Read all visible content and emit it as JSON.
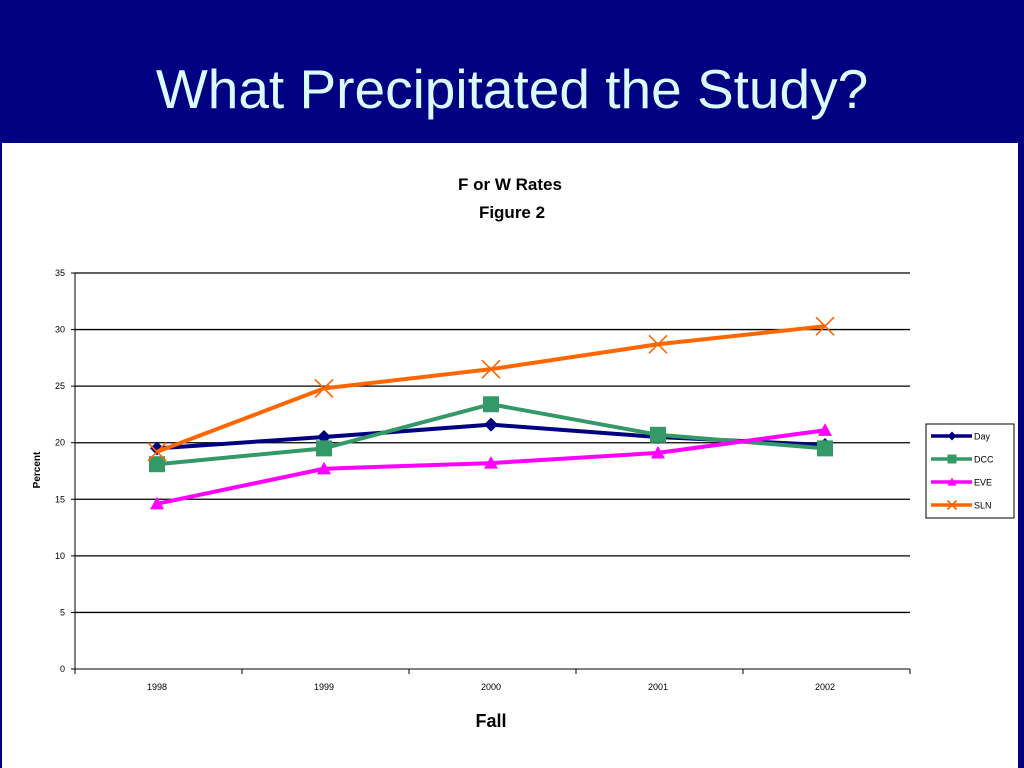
{
  "slide": {
    "title": "What Precipitated the Study?"
  },
  "chart_data": {
    "type": "line",
    "title": "F or W Rates",
    "subtitle": "Figure 2",
    "xlabel": "Fall",
    "ylabel": "Percent",
    "categories": [
      "1998",
      "1999",
      "2000",
      "2001",
      "2002"
    ],
    "ylim": [
      0,
      35
    ],
    "yticks": [
      0,
      5,
      10,
      15,
      20,
      25,
      30,
      35
    ],
    "grid": true,
    "legend_position": "right",
    "series": [
      {
        "name": "Day",
        "values": [
          19.5,
          20.5,
          21.6,
          20.5,
          19.8
        ],
        "color": "#000080",
        "marker": "diamond"
      },
      {
        "name": "DCC",
        "values": [
          18.1,
          19.5,
          23.4,
          20.7,
          19.5
        ],
        "color": "#339966",
        "marker": "square"
      },
      {
        "name": "EVE",
        "values": [
          14.6,
          17.7,
          18.2,
          19.1,
          21.1
        ],
        "color": "#ff00ff",
        "marker": "triangle"
      },
      {
        "name": "SLN",
        "values": [
          19.2,
          24.8,
          26.5,
          28.7,
          30.3
        ],
        "color": "#ff6600",
        "marker": "x"
      }
    ]
  }
}
